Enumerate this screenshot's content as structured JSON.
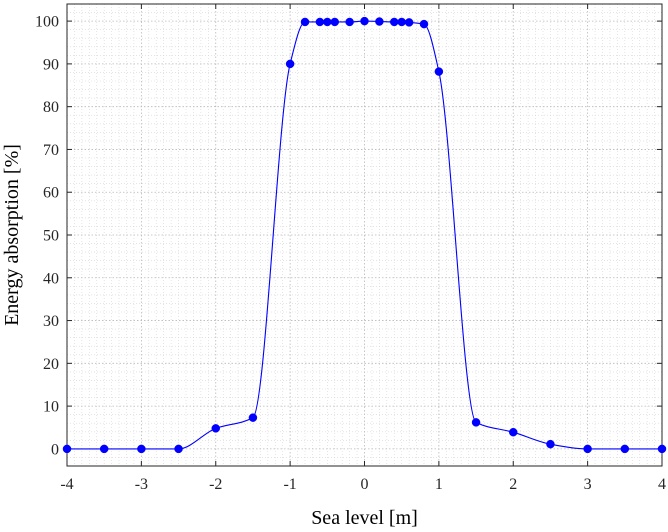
{
  "chart_data": {
    "type": "line",
    "title": "",
    "xlabel": "Sea level [m]",
    "ylabel": "Energy absorption [%]",
    "xlim": [
      -4,
      4
    ],
    "ylim": [
      -4,
      104
    ],
    "xticks": [
      -4,
      -3,
      -2,
      -1,
      0,
      1,
      2,
      3,
      4
    ],
    "xtick_labels": [
      "-4",
      "-3",
      "-2",
      "-1",
      "0",
      "1",
      "2",
      "3",
      "4"
    ],
    "yticks": [
      0,
      10,
      20,
      30,
      40,
      50,
      60,
      70,
      80,
      90,
      100
    ],
    "ytick_labels": [
      "0",
      "10",
      "20",
      "30",
      "40",
      "50",
      "60",
      "70",
      "80",
      "90",
      "100"
    ],
    "grid": true,
    "minor_grid": true,
    "legend": false,
    "series": [
      {
        "color": "#0000ff",
        "marker": "circle",
        "x": [
          -4,
          -3.5,
          -3,
          -2.5,
          -2,
          -1.5,
          -1,
          -0.8,
          -0.6,
          -0.5,
          -0.4,
          -0.2,
          0,
          0.2,
          0.4,
          0.5,
          0.6,
          0.8,
          1,
          1.5,
          2,
          2.5,
          3,
          3.5,
          4
        ],
        "y": [
          0,
          0,
          0,
          0,
          4.8,
          7.3,
          90,
          99.8,
          99.8,
          99.8,
          99.8,
          99.8,
          100,
          99.9,
          99.8,
          99.8,
          99.7,
          99.3,
          88.2,
          6.2,
          3.9,
          1.1,
          0,
          0,
          0
        ]
      }
    ]
  }
}
